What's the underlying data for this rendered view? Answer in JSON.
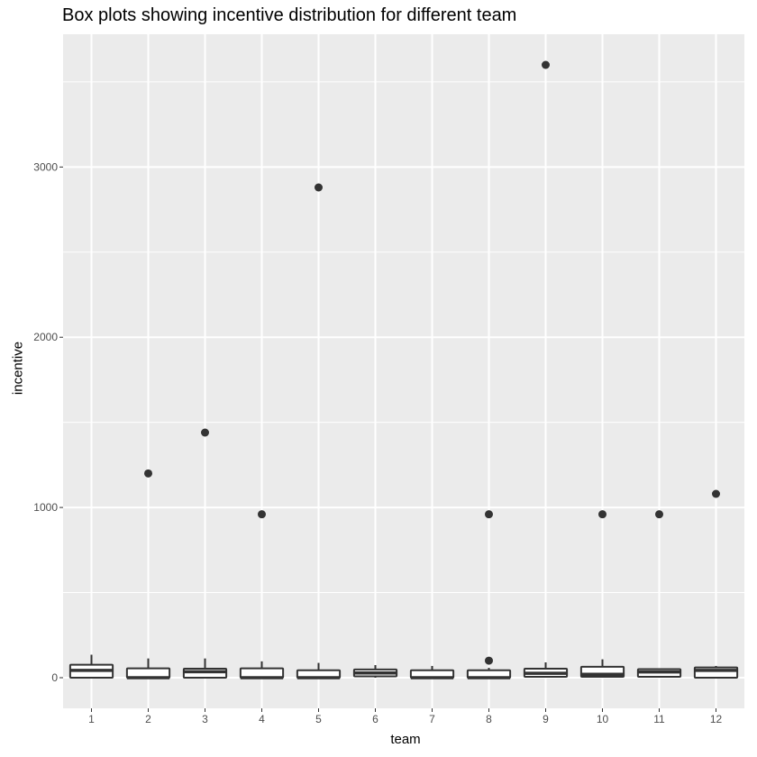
{
  "chart_data": {
    "type": "boxplot",
    "title": "Box plots showing incentive distribution for different team",
    "xlabel": "team",
    "ylabel": "incentive",
    "categories": [
      "1",
      "2",
      "3",
      "4",
      "5",
      "6",
      "7",
      "8",
      "9",
      "10",
      "11",
      "12"
    ],
    "ylim": [
      -180,
      3780
    ],
    "yticks": [
      0,
      1000,
      2000,
      3000
    ],
    "grid": true,
    "boxes": [
      {
        "team": "1",
        "lower": 0,
        "q1": 0,
        "median": 43,
        "q3": 76,
        "upper": 135,
        "outliers": []
      },
      {
        "team": "2",
        "lower": 0,
        "q1": 0,
        "median": 0,
        "q3": 55,
        "upper": 113,
        "outliers": [
          1200
        ]
      },
      {
        "team": "3",
        "lower": 0,
        "q1": 0,
        "median": 35,
        "q3": 53,
        "upper": 113,
        "outliers": [
          1440
        ]
      },
      {
        "team": "4",
        "lower": 0,
        "q1": 0,
        "median": 0,
        "q3": 55,
        "upper": 96,
        "outliers": [
          960
        ]
      },
      {
        "team": "5",
        "lower": 0,
        "q1": 0,
        "median": 0,
        "q3": 44,
        "upper": 87,
        "outliers": [
          2880
        ]
      },
      {
        "team": "6",
        "lower": 0,
        "q1": 8,
        "median": 28,
        "q3": 48,
        "upper": 74,
        "outliers": []
      },
      {
        "team": "7",
        "lower": 0,
        "q1": 0,
        "median": 0,
        "q3": 44,
        "upper": 69,
        "outliers": []
      },
      {
        "team": "8",
        "lower": 0,
        "q1": 0,
        "median": 0,
        "q3": 44,
        "upper": 58,
        "outliers": [
          100,
          960
        ]
      },
      {
        "team": "9",
        "lower": 0,
        "q1": 5,
        "median": 26,
        "q3": 53,
        "upper": 90,
        "outliers": [
          3600
        ]
      },
      {
        "team": "10",
        "lower": 0,
        "q1": 5,
        "median": 20,
        "q3": 64,
        "upper": 108,
        "outliers": [
          960
        ]
      },
      {
        "team": "11",
        "lower": 0,
        "q1": 5,
        "median": 34,
        "q3": 50,
        "upper": 55,
        "outliers": [
          960
        ]
      },
      {
        "team": "12",
        "lower": 0,
        "q1": 0,
        "median": 43,
        "q3": 60,
        "upper": 69,
        "outliers": [
          1080
        ]
      }
    ],
    "colors": {
      "panel": "#ebebeb",
      "grid": "#ffffff",
      "box_line": "#333333",
      "box_fill": "#ffffff",
      "outlier": "#333333"
    }
  }
}
